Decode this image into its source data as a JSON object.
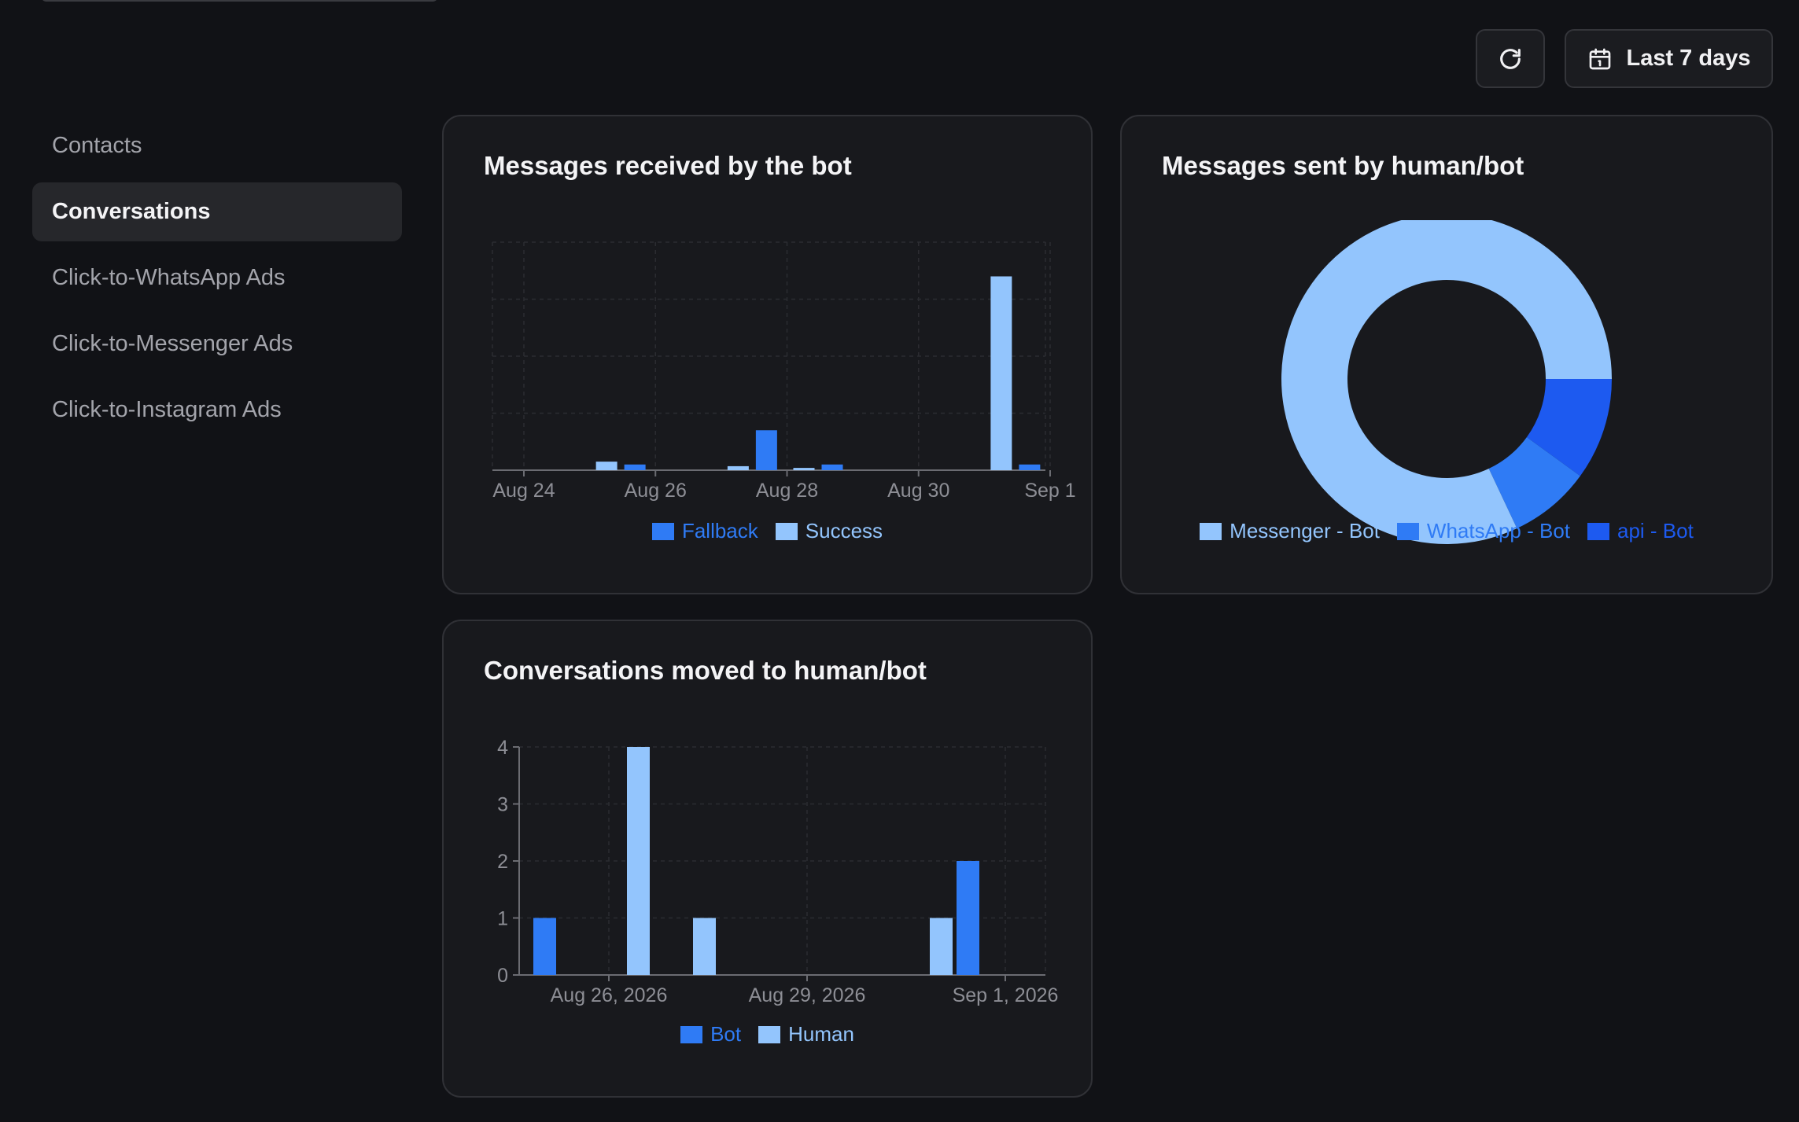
{
  "toolbar": {
    "date_range_label": "Last 7 days"
  },
  "sidebar": {
    "items": [
      {
        "label": "Contacts",
        "active": false
      },
      {
        "label": "Conversations",
        "active": true
      },
      {
        "label": "Click-to-WhatsApp Ads",
        "active": false
      },
      {
        "label": "Click-to-Messenger Ads",
        "active": false
      },
      {
        "label": "Click-to-Instagram Ads",
        "active": false
      }
    ]
  },
  "colors": {
    "bot_blue": "#2f7bf5",
    "success_light": "#93c5fd",
    "whatsapp_blue": "#2f7bf5",
    "api_blue": "#1d5af0"
  },
  "chart_data": [
    {
      "type": "bar",
      "title": "Messages received by the bot",
      "x_ticks": [
        "Aug 24",
        "Aug 26",
        "Aug 28",
        "Aug 30",
        "Sep 1"
      ],
      "categories": [
        "Aug 24",
        "Aug 25",
        "Aug 26",
        "Aug 27",
        "Aug 28",
        "Aug 29",
        "Aug 30",
        "Aug 31",
        "Sep 1"
      ],
      "series": [
        {
          "name": "Fallback",
          "color": "#2f7bf5",
          "values": [
            0,
            1,
            0,
            7,
            1,
            0,
            0,
            1,
            0
          ]
        },
        {
          "name": "Success",
          "color": "#93c5fd",
          "values": [
            0,
            1.5,
            0,
            0.7,
            0.4,
            0,
            0,
            34,
            0
          ]
        }
      ],
      "ylim": [
        0,
        40
      ],
      "grid": true,
      "y_axis_labels": false,
      "legend": "bottom"
    },
    {
      "type": "pie",
      "title": "Messages sent by human/bot",
      "donut": true,
      "slices": [
        {
          "name": "Messenger - Bot",
          "color": "#93c5fd",
          "value": 82
        },
        {
          "name": "WhatsApp - Bot",
          "color": "#2f7bf5",
          "value": 8
        },
        {
          "name": "api - Bot",
          "color": "#1d5af0",
          "value": 10
        }
      ],
      "legend": "bottom"
    },
    {
      "type": "bar",
      "title": "Conversations moved to human/bot",
      "x_ticks": [
        "Aug 26, 2026",
        "Aug 29, 2026",
        "Sep 1, 2026"
      ],
      "categories": [
        "Aug 25",
        "Aug 26",
        "Aug 27",
        "Aug 28",
        "Aug 29",
        "Aug 30",
        "Aug 31",
        "Sep 1"
      ],
      "series": [
        {
          "name": "Bot",
          "color": "#2f7bf5",
          "values": [
            1,
            0,
            0,
            0,
            0,
            0,
            2,
            0
          ]
        },
        {
          "name": "Human",
          "color": "#93c5fd",
          "values": [
            0,
            4,
            1,
            0,
            0,
            0,
            1,
            0
          ]
        }
      ],
      "y_ticks": [
        "0",
        "1",
        "2",
        "3",
        "4"
      ],
      "ylim": [
        0,
        4
      ],
      "grid": true,
      "legend": "bottom"
    }
  ]
}
